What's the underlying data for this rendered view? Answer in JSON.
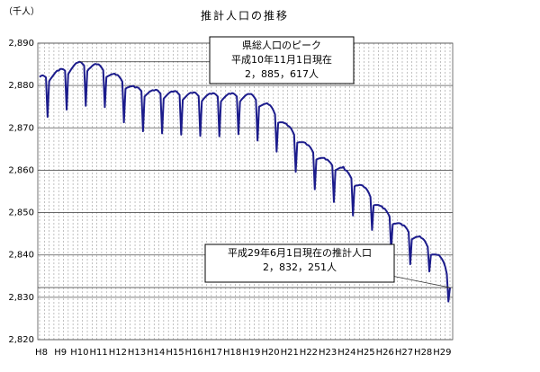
{
  "chart_data": {
    "type": "line",
    "title": "推計人口の推移",
    "y_label": "（千人）",
    "categories": [
      "H8",
      null,
      null,
      null,
      null,
      null,
      null,
      null,
      null,
      null,
      null,
      null,
      "H9",
      null,
      null,
      null,
      null,
      null,
      null,
      null,
      null,
      null,
      null,
      null,
      "H10",
      null,
      null,
      null,
      null,
      null,
      null,
      null,
      null,
      null,
      null,
      null,
      "H11",
      null,
      null,
      null,
      null,
      null,
      null,
      null,
      null,
      null,
      null,
      null,
      "H12",
      null,
      null,
      null,
      null,
      null,
      null,
      null,
      null,
      null,
      null,
      null,
      "H13",
      null,
      null,
      null,
      null,
      null,
      null,
      null,
      null,
      null,
      null,
      null,
      "H14",
      null,
      null,
      null,
      null,
      null,
      null,
      null,
      null,
      null,
      null,
      null,
      "H15",
      null,
      null,
      null,
      null,
      null,
      null,
      null,
      null,
      null,
      null,
      null,
      "H16",
      null,
      null,
      null,
      null,
      null,
      null,
      null,
      null,
      null,
      null,
      null,
      "H17",
      null,
      null,
      null,
      null,
      null,
      null,
      null,
      null,
      null,
      null,
      null,
      "H18",
      null,
      null,
      null,
      null,
      null,
      null,
      null,
      null,
      null,
      null,
      null,
      "H19",
      null,
      null,
      null,
      null,
      null,
      null,
      null,
      null,
      null,
      null,
      null,
      "H20",
      null,
      null,
      null,
      null,
      null,
      null,
      null,
      null,
      null,
      null,
      null,
      "H21",
      null,
      null,
      null,
      null,
      null,
      null,
      null,
      null,
      null,
      null,
      null,
      "H22",
      null,
      null,
      null,
      null,
      null,
      null,
      null,
      null,
      null,
      null,
      null,
      "H23",
      null,
      null,
      null,
      null,
      null,
      null,
      null,
      null,
      null,
      null,
      null,
      "H24",
      null,
      null,
      null,
      null,
      null,
      null,
      null,
      null,
      null,
      null,
      null,
      "H25",
      null,
      null,
      null,
      null,
      null,
      null,
      null,
      null,
      null,
      null,
      null,
      "H26",
      null,
      null,
      null,
      null,
      null,
      null,
      null,
      null,
      null,
      null,
      null,
      "H27",
      null,
      null,
      null,
      null,
      null,
      null,
      null,
      null,
      null,
      null,
      null,
      "H28",
      null,
      null,
      null,
      null,
      null,
      null,
      null,
      null,
      null,
      null,
      null,
      "H29",
      null,
      null,
      null,
      null,
      null,
      null
    ],
    "values": [
      2882.0,
      2882.3,
      2882.4,
      2882.2,
      2881.9,
      2872.6,
      2881.0,
      2881.6,
      2882.1,
      2882.6,
      2883.1,
      2883.5,
      2883.5,
      2883.9,
      2883.9,
      2883.8,
      2883.5,
      2874.3,
      2882.7,
      2883.3,
      2883.9,
      2884.4,
      2884.9,
      2885.3,
      2885.4,
      2885.6,
      2885.5,
      2885.1,
      2884.7,
      2875.2,
      2883.4,
      2883.9,
      2884.2,
      2884.6,
      2884.9,
      2885.1,
      2885.0,
      2885.0,
      2884.7,
      2884.2,
      2883.6,
      2874.9,
      2882.0,
      2882.2,
      2882.4,
      2882.6,
      2882.7,
      2882.8,
      2882.5,
      2882.5,
      2882.1,
      2881.6,
      2880.9,
      2871.3,
      2879.2,
      2879.5,
      2879.6,
      2879.8,
      2879.8,
      2879.9,
      2879.5,
      2879.6,
      2879.5,
      2879.1,
      2878.7,
      2869.2,
      2877.4,
      2877.8,
      2878.1,
      2878.5,
      2878.7,
      2878.9,
      2878.8,
      2879.0,
      2878.9,
      2878.5,
      2878.1,
      2868.7,
      2876.9,
      2877.3,
      2877.7,
      2878.1,
      2878.4,
      2878.6,
      2878.5,
      2878.7,
      2878.6,
      2878.2,
      2877.8,
      2868.4,
      2876.6,
      2877.0,
      2877.4,
      2877.8,
      2878.1,
      2878.3,
      2878.2,
      2878.4,
      2878.3,
      2877.9,
      2877.5,
      2868.1,
      2876.3,
      2876.8,
      2877.2,
      2877.6,
      2877.9,
      2878.1,
      2878.0,
      2878.2,
      2878.1,
      2877.8,
      2877.4,
      2868.0,
      2876.2,
      2876.7,
      2877.1,
      2877.5,
      2877.8,
      2878.1,
      2878.0,
      2878.2,
      2878.1,
      2877.8,
      2877.4,
      2868.5,
      2876.2,
      2876.7,
      2877.1,
      2877.5,
      2877.8,
      2878.0,
      2878.0,
      2878.0,
      2877.7,
      2877.2,
      2876.6,
      2867.0,
      2875.0,
      2875.2,
      2875.4,
      2875.6,
      2875.7,
      2875.8,
      2875.5,
      2875.3,
      2874.8,
      2874.1,
      2873.2,
      2864.4,
      2871.2,
      2871.3,
      2871.3,
      2871.3,
      2871.1,
      2871.0,
      2870.5,
      2870.3,
      2869.9,
      2869.2,
      2868.4,
      2859.6,
      2866.5,
      2866.6,
      2866.6,
      2866.6,
      2866.6,
      2866.5,
      2866.0,
      2865.9,
      2865.5,
      2864.9,
      2864.2,
      2855.5,
      2862.5,
      2862.7,
      2862.8,
      2862.9,
      2862.9,
      2862.9,
      2862.5,
      2862.5,
      2862.1,
      2861.7,
      2861.1,
      2852.5,
      2860.0,
      2860.2,
      2860.4,
      2860.6,
      2860.6,
      2860.8,
      2860.0,
      2859.9,
      2859.4,
      2858.8,
      2858.1,
      2849.3,
      2856.2,
      2856.4,
      2856.4,
      2856.5,
      2856.5,
      2856.4,
      2856.0,
      2855.8,
      2855.3,
      2854.6,
      2853.7,
      2845.9,
      2851.7,
      2851.8,
      2851.8,
      2851.8,
      2851.6,
      2851.5,
      2851.0,
      2850.9,
      2850.4,
      2849.8,
      2849.1,
      2841.3,
      2847.2,
      2847.4,
      2847.4,
      2847.5,
      2847.5,
      2847.4,
      2847.0,
      2847.0,
      2846.6,
      2846.1,
      2845.4,
      2837.8,
      2843.7,
      2843.9,
      2844.1,
      2844.3,
      2844.3,
      2844.4,
      2844.0,
      2843.8,
      2843.4,
      2842.7,
      2841.9,
      2836.1,
      2840.0,
      2840.1,
      2840.1,
      2840.1,
      2840.0,
      2840.0,
      2839.5,
      2839.0,
      2838.3,
      2837.2,
      2835.5,
      2829.0,
      2832.3
    ],
    "color": "#1c1c8c",
    "ylim": [
      2820,
      2890
    ],
    "yticks": [
      {
        "value": 2820,
        "label": "2,820"
      },
      {
        "value": 2830,
        "label": "2,830"
      },
      {
        "value": 2840,
        "label": "2,840"
      },
      {
        "value": 2850,
        "label": "2,850"
      },
      {
        "value": 2860,
        "label": "2,860"
      },
      {
        "value": 2870,
        "label": "2,870"
      },
      {
        "value": 2880,
        "label": "2,880"
      },
      {
        "value": 2890,
        "label": "2,890"
      }
    ],
    "grid": true,
    "annotations": [
      {
        "lines": [
          "県総人口のピーク",
          "平成10年11月1日現在",
          "2，885，617人"
        ]
      },
      {
        "lines": [
          "平成29年6月1日現在の推計人口",
          "2，832，251人"
        ]
      }
    ]
  }
}
